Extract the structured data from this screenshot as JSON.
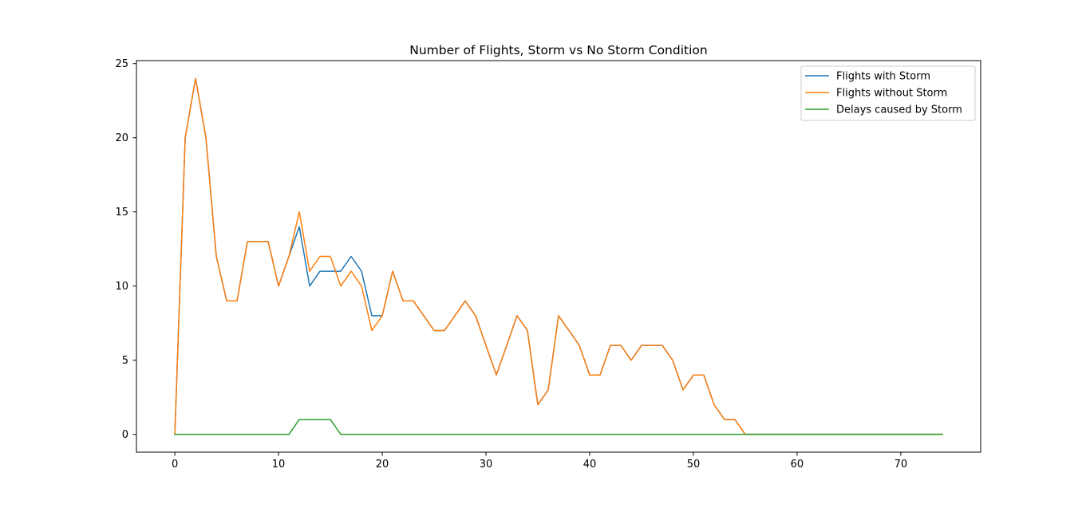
{
  "chart_data": {
    "type": "line",
    "title": "Number of Flights, Storm vs No Storm Condition",
    "xlabel": "",
    "ylabel": "",
    "xlim": [
      -3.7,
      77.7
    ],
    "ylim": [
      -1.2,
      25.2
    ],
    "xticks": [
      0,
      10,
      20,
      30,
      40,
      50,
      60,
      70
    ],
    "yticks": [
      0,
      5,
      10,
      15,
      20,
      25
    ],
    "grid": false,
    "legend_position": "upper right",
    "series": [
      {
        "name": "Flights with Storm",
        "color": "#1f77b4",
        "x": [
          0,
          1,
          2,
          3,
          4,
          5,
          6,
          7,
          8,
          9,
          10,
          11,
          12,
          13,
          14,
          15,
          16,
          17,
          18,
          19,
          20,
          21,
          22,
          23,
          24,
          25,
          26,
          27,
          28,
          29,
          30,
          31,
          32,
          33,
          34,
          35,
          36,
          37,
          38,
          39,
          40,
          41,
          42,
          43,
          44,
          45,
          46,
          47,
          48,
          49,
          50,
          51,
          52,
          53,
          54,
          55,
          56,
          57,
          58,
          59,
          60,
          61,
          62,
          63,
          64,
          65,
          66,
          67,
          68,
          69,
          70,
          71,
          72,
          73,
          74
        ],
        "y": [
          0,
          20,
          24,
          20,
          12,
          9,
          9,
          13,
          13,
          13,
          10,
          12,
          14,
          10,
          11,
          11,
          11,
          12,
          11,
          8,
          8,
          11,
          9,
          9,
          8,
          7,
          7,
          8,
          9,
          8,
          6,
          4,
          6,
          8,
          7,
          2,
          3,
          8,
          7,
          6,
          4,
          4,
          6,
          6,
          5,
          6,
          6,
          6,
          5,
          3,
          4,
          4,
          2,
          1,
          1,
          0,
          0,
          0,
          0,
          0,
          0,
          0,
          0,
          0,
          0,
          0,
          0,
          0,
          0,
          0,
          0,
          0,
          0,
          0,
          0
        ]
      },
      {
        "name": "Flights without Storm",
        "color": "#ff7f0e",
        "x": [
          0,
          1,
          2,
          3,
          4,
          5,
          6,
          7,
          8,
          9,
          10,
          11,
          12,
          13,
          14,
          15,
          16,
          17,
          18,
          19,
          20,
          21,
          22,
          23,
          24,
          25,
          26,
          27,
          28,
          29,
          30,
          31,
          32,
          33,
          34,
          35,
          36,
          37,
          38,
          39,
          40,
          41,
          42,
          43,
          44,
          45,
          46,
          47,
          48,
          49,
          50,
          51,
          52,
          53,
          54,
          55,
          56,
          57,
          58,
          59,
          60,
          61,
          62,
          63,
          64,
          65,
          66,
          67,
          68,
          69,
          70,
          71,
          72,
          73,
          74
        ],
        "y": [
          0,
          20,
          24,
          20,
          12,
          9,
          9,
          13,
          13,
          13,
          10,
          12,
          15,
          11,
          12,
          12,
          10,
          11,
          10,
          7,
          8,
          11,
          9,
          9,
          8,
          7,
          7,
          8,
          9,
          8,
          6,
          4,
          6,
          8,
          7,
          2,
          3,
          8,
          7,
          6,
          4,
          4,
          6,
          6,
          5,
          6,
          6,
          6,
          5,
          3,
          4,
          4,
          2,
          1,
          1,
          0,
          0,
          0,
          0,
          0,
          0,
          0,
          0,
          0,
          0,
          0,
          0,
          0,
          0,
          0,
          0,
          0,
          0,
          0,
          0
        ]
      },
      {
        "name": "Delays caused by Storm",
        "color": "#2ca02c",
        "x": [
          0,
          1,
          2,
          3,
          4,
          5,
          6,
          7,
          8,
          9,
          10,
          11,
          12,
          13,
          14,
          15,
          16,
          17,
          18,
          19,
          20,
          21,
          22,
          23,
          24,
          25,
          26,
          27,
          28,
          29,
          30,
          31,
          32,
          33,
          34,
          35,
          36,
          37,
          38,
          39,
          40,
          41,
          42,
          43,
          44,
          45,
          46,
          47,
          48,
          49,
          50,
          51,
          52,
          53,
          54,
          55,
          56,
          57,
          58,
          59,
          60,
          61,
          62,
          63,
          64,
          65,
          66,
          67,
          68,
          69,
          70,
          71,
          72,
          73,
          74
        ],
        "y": [
          0,
          0,
          0,
          0,
          0,
          0,
          0,
          0,
          0,
          0,
          0,
          0,
          1,
          1,
          1,
          1,
          0,
          0,
          0,
          0,
          0,
          0,
          0,
          0,
          0,
          0,
          0,
          0,
          0,
          0,
          0,
          0,
          0,
          0,
          0,
          0,
          0,
          0,
          0,
          0,
          0,
          0,
          0,
          0,
          0,
          0,
          0,
          0,
          0,
          0,
          0,
          0,
          0,
          0,
          0,
          0,
          0,
          0,
          0,
          0,
          0,
          0,
          0,
          0,
          0,
          0,
          0,
          0,
          0,
          0,
          0,
          0,
          0,
          0,
          0
        ]
      }
    ]
  }
}
